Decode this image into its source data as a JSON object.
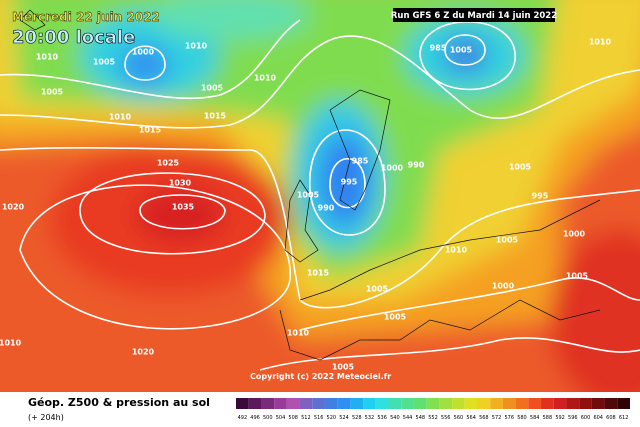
{
  "header": {
    "date": "Mercredi 22 juin 2022",
    "time": "20:00 locale",
    "run": "Run GFS 6 Z du Mardi 14 juin 2022"
  },
  "copyright": "Copyright (c) 2022 Meteociel.fr",
  "footer": {
    "title": "Géop. Z500 & pression au sol",
    "lead": "(+ 204h)"
  },
  "scale": {
    "values": [
      492,
      496,
      500,
      504,
      508,
      512,
      516,
      520,
      524,
      528,
      532,
      536,
      540,
      544,
      548,
      552,
      556,
      560,
      564,
      568,
      572,
      576,
      580,
      584,
      588,
      592,
      596,
      600,
      604,
      608,
      612
    ],
    "colors": [
      "#3a0a3a",
      "#5a1a5a",
      "#7a2a7a",
      "#9a3a9a",
      "#b050b0",
      "#8060c0",
      "#6070d0",
      "#4080e0",
      "#3090f0",
      "#20b0f0",
      "#20d0f0",
      "#30e0e0",
      "#40e0b0",
      "#50e090",
      "#60e070",
      "#80e050",
      "#a0e040",
      "#c0e030",
      "#e0e020",
      "#f0d020",
      "#f0b020",
      "#f09020",
      "#f07020",
      "#f05020",
      "#e03020",
      "#d02020",
      "#b01818",
      "#901010",
      "#700c0c",
      "#500808",
      "#300404"
    ]
  },
  "isobar_labels": [
    1000,
    1010,
    1005,
    1010,
    1005,
    1010,
    1015,
    1005,
    1010,
    1015,
    1025,
    1030,
    1035,
    1020,
    1020,
    1010,
    1010,
    1015,
    1005,
    990,
    985,
    995,
    1000,
    990,
    985,
    1005,
    1010,
    1005,
    995,
    1000,
    1005,
    1010,
    1005,
    1000,
    1005,
    1005,
    1005
  ]
}
